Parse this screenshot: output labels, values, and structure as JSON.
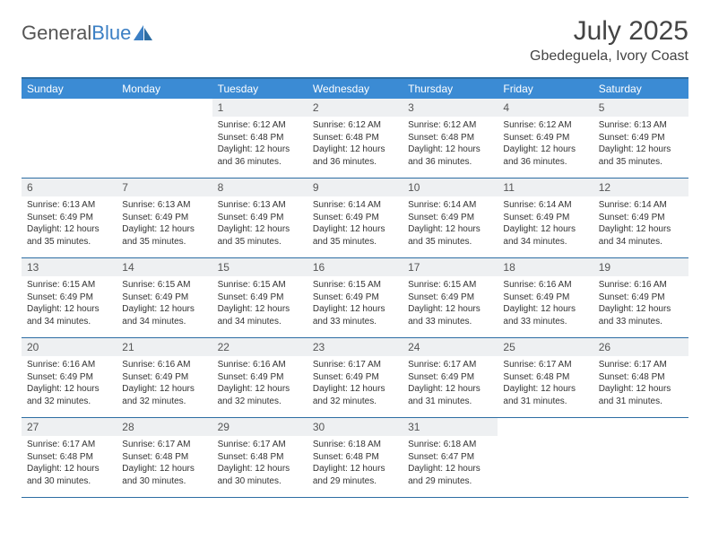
{
  "logo": {
    "text1": "General",
    "text2": "Blue"
  },
  "title": "July 2025",
  "location": "Gbedeguela, Ivory Coast",
  "colors": {
    "header_bg": "#3b8bd4",
    "header_border": "#2d6da3",
    "daynum_bg": "#eef0f2",
    "text": "#333333",
    "logo_gray": "#555555",
    "logo_blue": "#3b7fc4"
  },
  "weekdays": [
    "Sunday",
    "Monday",
    "Tuesday",
    "Wednesday",
    "Thursday",
    "Friday",
    "Saturday"
  ],
  "weeks": [
    [
      null,
      null,
      {
        "n": "1",
        "sr": "6:12 AM",
        "ss": "6:48 PM",
        "dl": "12 hours and 36 minutes."
      },
      {
        "n": "2",
        "sr": "6:12 AM",
        "ss": "6:48 PM",
        "dl": "12 hours and 36 minutes."
      },
      {
        "n": "3",
        "sr": "6:12 AM",
        "ss": "6:48 PM",
        "dl": "12 hours and 36 minutes."
      },
      {
        "n": "4",
        "sr": "6:12 AM",
        "ss": "6:49 PM",
        "dl": "12 hours and 36 minutes."
      },
      {
        "n": "5",
        "sr": "6:13 AM",
        "ss": "6:49 PM",
        "dl": "12 hours and 35 minutes."
      }
    ],
    [
      {
        "n": "6",
        "sr": "6:13 AM",
        "ss": "6:49 PM",
        "dl": "12 hours and 35 minutes."
      },
      {
        "n": "7",
        "sr": "6:13 AM",
        "ss": "6:49 PM",
        "dl": "12 hours and 35 minutes."
      },
      {
        "n": "8",
        "sr": "6:13 AM",
        "ss": "6:49 PM",
        "dl": "12 hours and 35 minutes."
      },
      {
        "n": "9",
        "sr": "6:14 AM",
        "ss": "6:49 PM",
        "dl": "12 hours and 35 minutes."
      },
      {
        "n": "10",
        "sr": "6:14 AM",
        "ss": "6:49 PM",
        "dl": "12 hours and 35 minutes."
      },
      {
        "n": "11",
        "sr": "6:14 AM",
        "ss": "6:49 PM",
        "dl": "12 hours and 34 minutes."
      },
      {
        "n": "12",
        "sr": "6:14 AM",
        "ss": "6:49 PM",
        "dl": "12 hours and 34 minutes."
      }
    ],
    [
      {
        "n": "13",
        "sr": "6:15 AM",
        "ss": "6:49 PM",
        "dl": "12 hours and 34 minutes."
      },
      {
        "n": "14",
        "sr": "6:15 AM",
        "ss": "6:49 PM",
        "dl": "12 hours and 34 minutes."
      },
      {
        "n": "15",
        "sr": "6:15 AM",
        "ss": "6:49 PM",
        "dl": "12 hours and 34 minutes."
      },
      {
        "n": "16",
        "sr": "6:15 AM",
        "ss": "6:49 PM",
        "dl": "12 hours and 33 minutes."
      },
      {
        "n": "17",
        "sr": "6:15 AM",
        "ss": "6:49 PM",
        "dl": "12 hours and 33 minutes."
      },
      {
        "n": "18",
        "sr": "6:16 AM",
        "ss": "6:49 PM",
        "dl": "12 hours and 33 minutes."
      },
      {
        "n": "19",
        "sr": "6:16 AM",
        "ss": "6:49 PM",
        "dl": "12 hours and 33 minutes."
      }
    ],
    [
      {
        "n": "20",
        "sr": "6:16 AM",
        "ss": "6:49 PM",
        "dl": "12 hours and 32 minutes."
      },
      {
        "n": "21",
        "sr": "6:16 AM",
        "ss": "6:49 PM",
        "dl": "12 hours and 32 minutes."
      },
      {
        "n": "22",
        "sr": "6:16 AM",
        "ss": "6:49 PM",
        "dl": "12 hours and 32 minutes."
      },
      {
        "n": "23",
        "sr": "6:17 AM",
        "ss": "6:49 PM",
        "dl": "12 hours and 32 minutes."
      },
      {
        "n": "24",
        "sr": "6:17 AM",
        "ss": "6:49 PM",
        "dl": "12 hours and 31 minutes."
      },
      {
        "n": "25",
        "sr": "6:17 AM",
        "ss": "6:48 PM",
        "dl": "12 hours and 31 minutes."
      },
      {
        "n": "26",
        "sr": "6:17 AM",
        "ss": "6:48 PM",
        "dl": "12 hours and 31 minutes."
      }
    ],
    [
      {
        "n": "27",
        "sr": "6:17 AM",
        "ss": "6:48 PM",
        "dl": "12 hours and 30 minutes."
      },
      {
        "n": "28",
        "sr": "6:17 AM",
        "ss": "6:48 PM",
        "dl": "12 hours and 30 minutes."
      },
      {
        "n": "29",
        "sr": "6:17 AM",
        "ss": "6:48 PM",
        "dl": "12 hours and 30 minutes."
      },
      {
        "n": "30",
        "sr": "6:18 AM",
        "ss": "6:48 PM",
        "dl": "12 hours and 29 minutes."
      },
      {
        "n": "31",
        "sr": "6:18 AM",
        "ss": "6:47 PM",
        "dl": "12 hours and 29 minutes."
      },
      null,
      null
    ]
  ],
  "labels": {
    "sunrise": "Sunrise:",
    "sunset": "Sunset:",
    "daylight": "Daylight:"
  }
}
